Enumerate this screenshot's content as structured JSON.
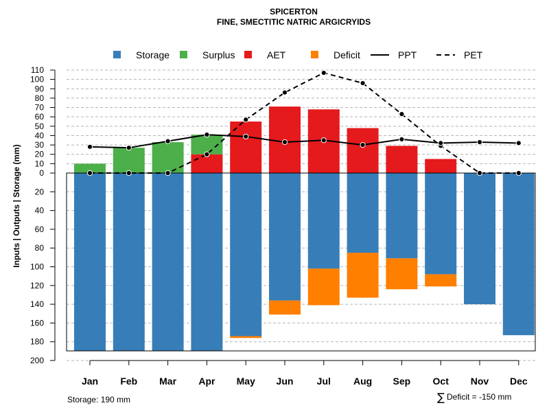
{
  "chart_data": {
    "type": "bar",
    "title": "SPICERTON",
    "subtitle": "FINE, SMECTITIC NATRIC ARGICRYIDS",
    "ylabel": "Inputs | Outputs | Storage     (mm)",
    "categories": [
      "Jan",
      "Feb",
      "Mar",
      "Apr",
      "May",
      "Jun",
      "Jul",
      "Aug",
      "Sep",
      "Oct",
      "Nov",
      "Dec"
    ],
    "upper_ticks": [
      0,
      10,
      20,
      30,
      40,
      50,
      60,
      70,
      80,
      90,
      100,
      110
    ],
    "lower_ticks": [
      20,
      40,
      60,
      80,
      100,
      120,
      140,
      160,
      180,
      200
    ],
    "ylim_upper": [
      0,
      110
    ],
    "ylim_lower": [
      0,
      200
    ],
    "legend": [
      {
        "label": "Storage",
        "type": "box",
        "color": "#377EB8"
      },
      {
        "label": "Surplus",
        "type": "box",
        "color": "#4DAF4A"
      },
      {
        "label": "AET",
        "type": "box",
        "color": "#E41A1C"
      },
      {
        "label": "Deficit",
        "type": "box",
        "color": "#FF7F00"
      },
      {
        "label": "PPT",
        "type": "solid",
        "color": "#000000"
      },
      {
        "label": "PET",
        "type": "dashed",
        "color": "#000000"
      }
    ],
    "series": [
      {
        "name": "Storage",
        "values": [
          190,
          190,
          190,
          190,
          174,
          136,
          102,
          85,
          91,
          108,
          140,
          173
        ]
      },
      {
        "name": "Deficit",
        "values": [
          0,
          0,
          0,
          0,
          2,
          15,
          39,
          48,
          33,
          13,
          0,
          0
        ]
      },
      {
        "name": "AET",
        "values": [
          0,
          0,
          0,
          20,
          55,
          71,
          68,
          48,
          29,
          15,
          0,
          0
        ]
      },
      {
        "name": "Surplus",
        "values": [
          10,
          27,
          33,
          21,
          0,
          0,
          0,
          0,
          0,
          0,
          0,
          0
        ]
      },
      {
        "name": "PPT",
        "values": [
          28,
          27,
          34,
          41,
          39,
          33,
          35,
          30,
          36,
          32,
          33,
          32
        ]
      },
      {
        "name": "PET",
        "values": [
          0,
          0,
          0,
          20,
          57,
          86,
          107,
          96,
          63,
          29,
          0,
          0
        ]
      }
    ],
    "annotations": {
      "storage_note": "Storage: 190 mm",
      "deficit_symbol": "∑",
      "deficit_note": "Deficit = -150 mm"
    }
  }
}
